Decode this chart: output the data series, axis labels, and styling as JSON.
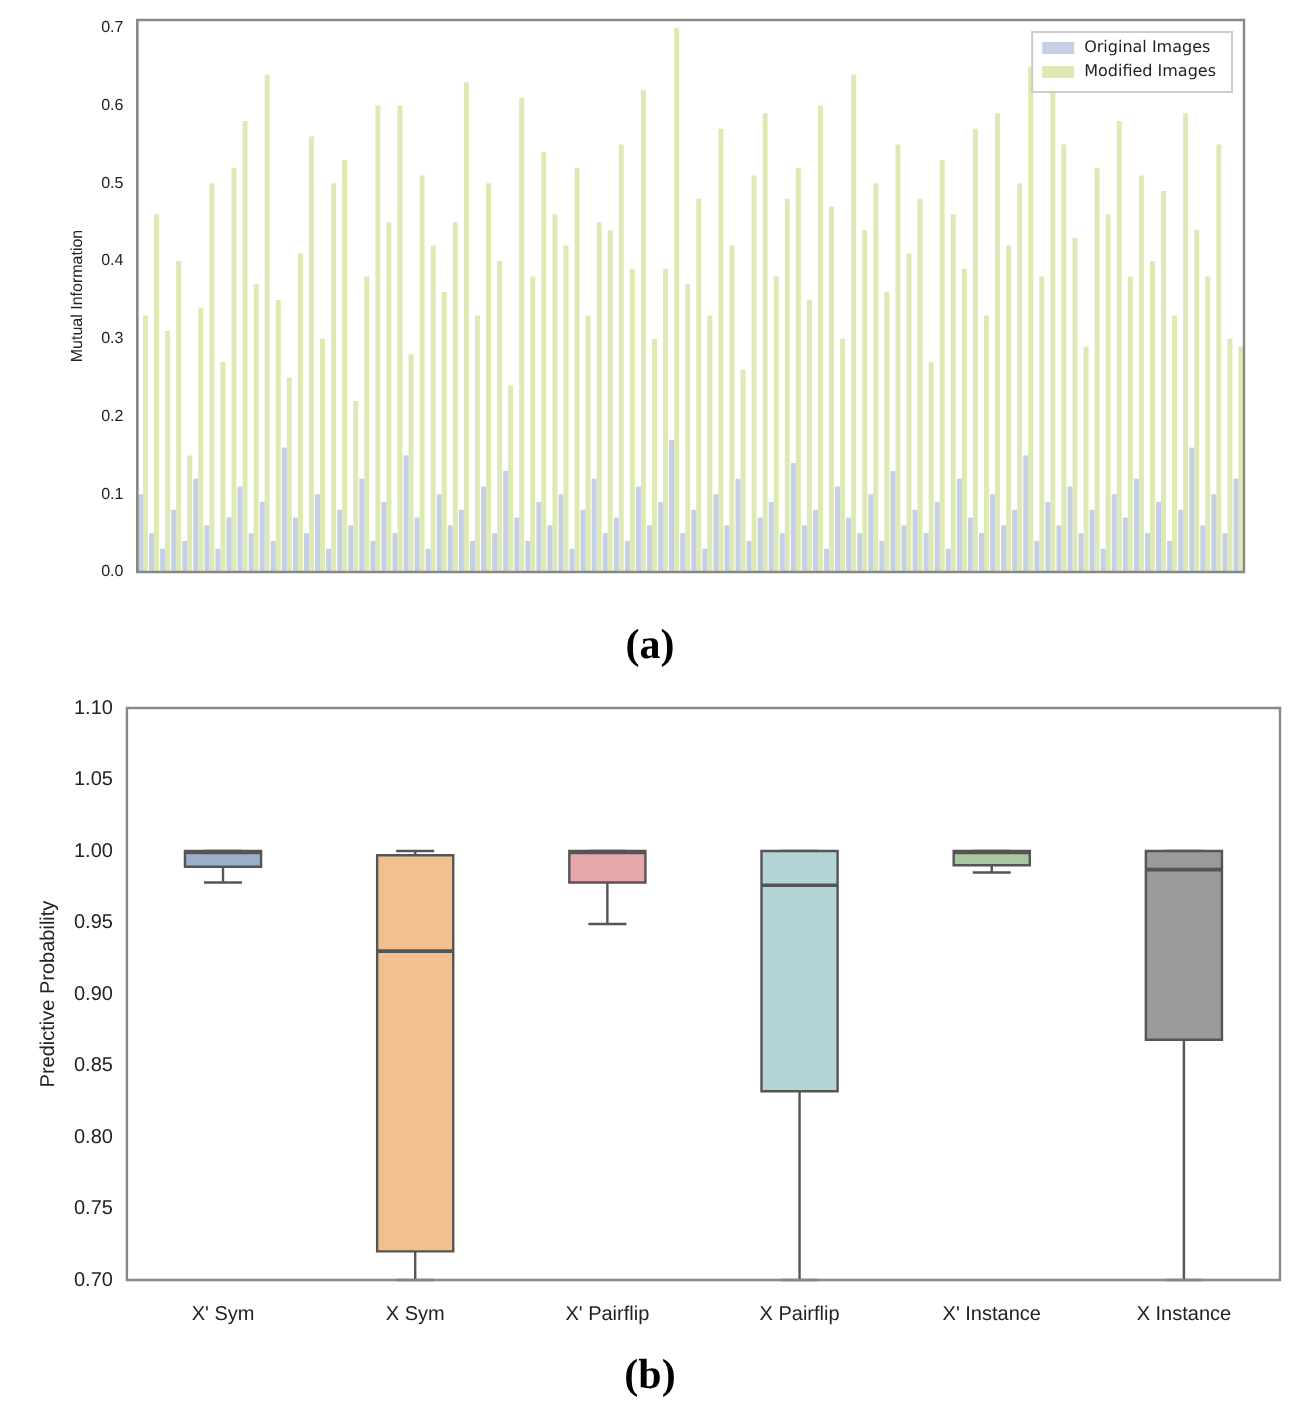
{
  "chart_data": [
    {
      "type": "bar",
      "ylabel": "Mutual Information",
      "annotations": [
        "(a)"
      ],
      "categories": [
        null,
        null,
        null,
        null,
        null,
        null,
        null,
        null,
        null,
        null,
        null,
        null,
        null,
        null,
        null,
        null,
        null,
        null,
        null,
        null,
        null,
        null,
        null,
        null,
        null,
        null,
        null,
        null,
        null,
        null,
        null,
        null,
        null,
        null,
        null,
        null,
        null,
        null,
        null,
        null,
        null,
        null,
        null,
        null,
        null,
        null,
        null,
        null,
        null,
        null,
        null,
        null,
        null,
        null,
        null,
        null,
        null,
        null,
        null,
        null,
        null,
        null,
        null,
        null,
        null,
        null,
        null,
        null,
        null,
        null,
        null,
        null,
        null,
        null,
        null,
        null,
        null,
        null,
        null,
        null,
        null,
        null,
        null,
        null,
        null,
        null,
        null,
        null,
        null,
        null,
        null,
        null,
        null,
        null,
        null,
        null,
        null,
        null,
        null,
        null
      ],
      "series": [
        {
          "name": "Original Images",
          "color": "#c4d0e3",
          "values": [
            0.1,
            0.05,
            0.03,
            0.08,
            0.04,
            0.12,
            0.06,
            0.03,
            0.07,
            0.11,
            0.05,
            0.09,
            0.04,
            0.16,
            0.07,
            0.05,
            0.1,
            0.03,
            0.08,
            0.06,
            0.12,
            0.04,
            0.09,
            0.05,
            0.15,
            0.07,
            0.03,
            0.1,
            0.06,
            0.08,
            0.04,
            0.11,
            0.05,
            0.13,
            0.07,
            0.04,
            0.09,
            0.06,
            0.1,
            0.03,
            0.08,
            0.12,
            0.05,
            0.07,
            0.04,
            0.11,
            0.06,
            0.09,
            0.17,
            0.05,
            0.08,
            0.03,
            0.1,
            0.06,
            0.12,
            0.04,
            0.07,
            0.09,
            0.05,
            0.14,
            0.06,
            0.08,
            0.03,
            0.11,
            0.07,
            0.05,
            0.1,
            0.04,
            0.13,
            0.06,
            0.08,
            0.05,
            0.09,
            0.03,
            0.12,
            0.07,
            0.05,
            0.1,
            0.06,
            0.08,
            0.15,
            0.04,
            0.09,
            0.06,
            0.11,
            0.05,
            0.08,
            0.03,
            0.1,
            0.07,
            0.12,
            0.05,
            0.09,
            0.04,
            0.08,
            0.16,
            0.06,
            0.1,
            0.05,
            0.12
          ]
        },
        {
          "name": "Modified Images",
          "color": "#dfe9b4",
          "values": [
            0.33,
            0.46,
            0.31,
            0.4,
            0.15,
            0.34,
            0.5,
            0.27,
            0.52,
            0.58,
            0.37,
            0.64,
            0.35,
            0.25,
            0.41,
            0.56,
            0.3,
            0.5,
            0.53,
            0.22,
            0.38,
            0.6,
            0.45,
            0.6,
            0.28,
            0.51,
            0.42,
            0.36,
            0.45,
            0.63,
            0.33,
            0.5,
            0.4,
            0.24,
            0.61,
            0.38,
            0.54,
            0.46,
            0.42,
            0.52,
            0.33,
            0.45,
            0.44,
            0.55,
            0.39,
            0.62,
            0.3,
            0.39,
            0.7,
            0.37,
            0.48,
            0.33,
            0.57,
            0.42,
            0.26,
            0.51,
            0.59,
            0.38,
            0.48,
            0.52,
            0.35,
            0.6,
            0.47,
            0.3,
            0.64,
            0.44,
            0.5,
            0.36,
            0.55,
            0.41,
            0.48,
            0.27,
            0.53,
            0.46,
            0.39,
            0.57,
            0.33,
            0.59,
            0.42,
            0.5,
            0.65,
            0.38,
            0.63,
            0.55,
            0.43,
            0.29,
            0.52,
            0.46,
            0.58,
            0.38,
            0.51,
            0.4,
            0.49,
            0.33,
            0.59,
            0.44,
            0.38,
            0.55,
            0.3,
            0.29
          ]
        }
      ],
      "ylim": [
        0,
        0.71
      ],
      "yticks": [
        {
          "value": 0,
          "label": "0.0"
        },
        {
          "value": 0.1,
          "label": "0.1"
        },
        {
          "value": 0.2,
          "label": "0.2"
        },
        {
          "value": 0.3,
          "label": "0.3"
        },
        {
          "value": 0.4,
          "label": "0.4"
        },
        {
          "value": 0.5,
          "label": "0.5"
        },
        {
          "value": 0.6,
          "label": "0.6"
        },
        {
          "value": 0.7,
          "label": "0.7"
        }
      ],
      "tick_labels": "y",
      "legend": "top right"
    },
    {
      "type": "box",
      "ylabel": "Predictive Probability",
      "annotations": [
        "(b)"
      ],
      "categories": [
        "X' Sym",
        "X Sym",
        "X' Pairflip",
        "X Pairflip",
        "X' Instance",
        "X Instance"
      ],
      "colors": [
        "#9bb0cc",
        "#f0c08e",
        "#e5a7aa",
        "#b4d5d5",
        "#a7c8a1",
        "#9a9a9a"
      ],
      "boxes": [
        {
          "low": 0.978,
          "q1": 0.989,
          "median": 0.999,
          "q3": 1.0,
          "high": 1.0
        },
        {
          "low": 0.7,
          "q1": 0.72,
          "median": 0.93,
          "q3": 0.997,
          "high": 1.0
        },
        {
          "low": 0.949,
          "q1": 0.978,
          "median": 0.999,
          "q3": 1.0,
          "high": 1.0
        },
        {
          "low": 0.7,
          "q1": 0.832,
          "median": 0.976,
          "q3": 1.0,
          "high": 1.0
        },
        {
          "low": 0.985,
          "q1": 0.99,
          "median": 0.999,
          "q3": 1.0,
          "high": 1.0
        },
        {
          "low": 0.7,
          "q1": 0.868,
          "median": 0.987,
          "q3": 1.0,
          "high": 1.0
        }
      ],
      "ylim": [
        0.7,
        1.1
      ],
      "yticks": [
        {
          "value": 0.7,
          "label": "0.70"
        },
        {
          "value": 0.75,
          "label": "0.75"
        },
        {
          "value": 0.8,
          "label": "0.80"
        },
        {
          "value": 0.85,
          "label": "0.85"
        },
        {
          "value": 0.9,
          "label": "0.90"
        },
        {
          "value": 0.95,
          "label": "0.95"
        },
        {
          "value": 1.0,
          "label": "1.00"
        },
        {
          "value": 1.05,
          "label": "1.05"
        },
        {
          "value": 1.1,
          "label": "1.10"
        }
      ]
    }
  ]
}
